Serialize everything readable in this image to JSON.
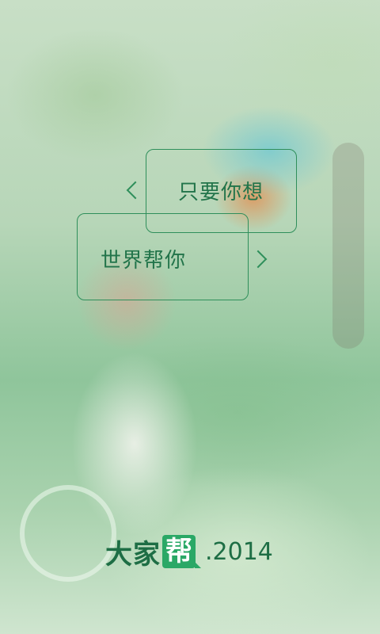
{
  "splash": {
    "bubble_top_text": "只要你想",
    "bubble_bottom_text": "世界帮你"
  },
  "logo": {
    "prefix": "大家",
    "badge": "帮",
    "year": ".2014"
  },
  "colors": {
    "accent": "#2f8f5b",
    "text": "#22744a",
    "badge": "#2aa866"
  }
}
